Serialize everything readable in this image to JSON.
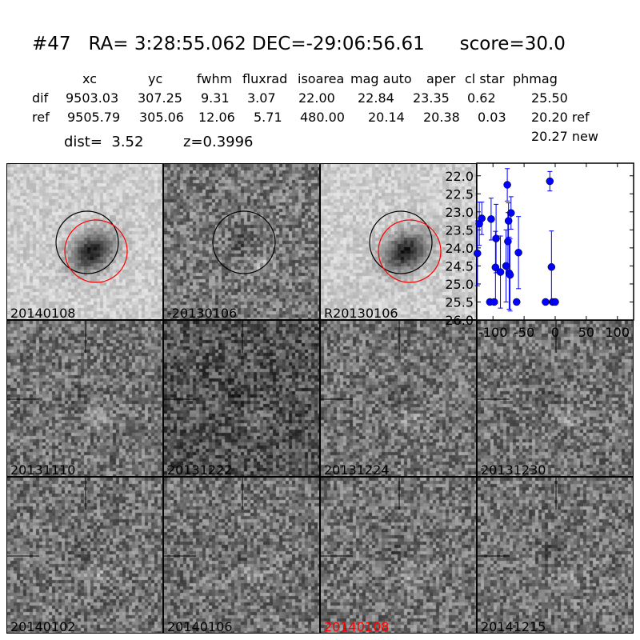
{
  "title": "#47   RA= 3:28:55.062 DEC=-29:06:56.61      score=30.0",
  "table": {
    "columns": [
      "xc",
      "yc",
      "fwhm",
      "fluxrad",
      "isoarea",
      "mag auto",
      "aper",
      "cl star",
      "phmag"
    ],
    "dif": {
      "label": "dif",
      "values": [
        "9503.03",
        "307.25",
        "9.31",
        "3.07",
        "22.00",
        "22.84",
        "23.35",
        "0.62",
        "25.50"
      ]
    },
    "ref": {
      "label": "ref",
      "values": [
        "9505.79",
        "305.06",
        "12.06",
        "5.71",
        "480.00",
        "20.14",
        "20.38",
        "0.03",
        "20.20 ref"
      ]
    },
    "new_phmag": "20.27 new",
    "dist": "dist=  3.52",
    "z": "z=0.3996"
  },
  "panels": [
    {
      "label": "20140108",
      "kind": "new",
      "circles": [
        "black",
        "red"
      ]
    },
    {
      "label": "-20130106",
      "kind": "diff",
      "circles": [
        "black"
      ]
    },
    {
      "label": "R20130106",
      "kind": "ref",
      "circles": [
        "black",
        "red"
      ]
    },
    {
      "label": "20131110",
      "kind": "stamp"
    },
    {
      "label": "20131222",
      "kind": "stamp"
    },
    {
      "label": "20131224",
      "kind": "stamp"
    },
    {
      "label": "20131230",
      "kind": "stamp"
    },
    {
      "label": "20140102",
      "kind": "stamp"
    },
    {
      "label": "20140106",
      "kind": "stamp"
    },
    {
      "label": "20140108",
      "kind": "stamp",
      "highlight": "#ff0000"
    },
    {
      "label": "20141215",
      "kind": "stamp"
    }
  ],
  "chart_data": {
    "type": "scatter",
    "title": "",
    "xlabel": "",
    "ylabel": "",
    "xlim": [
      -126,
      126
    ],
    "ylim": [
      26.0,
      21.65
    ],
    "y_inverted": true,
    "xticks": [
      "-100",
      "-50",
      "0",
      "50",
      "100"
    ],
    "yticks": [
      "22.0",
      "22.5",
      "23.0",
      "23.5",
      "24.0",
      "24.5",
      "25.0",
      "25.5",
      "26.0"
    ],
    "color": "#0000ff",
    "points": [
      {
        "x": -125,
        "y": 24.15,
        "err": 0.9
      },
      {
        "x": -122,
        "y": 23.33,
        "err": 0.6
      },
      {
        "x": -118,
        "y": 23.18,
        "err": 0.45
      },
      {
        "x": -103,
        "y": 23.2,
        "err": 0.58
      },
      {
        "x": -105,
        "y": 25.5,
        "err": 0.05
      },
      {
        "x": -98,
        "y": 25.5,
        "err": 0.05
      },
      {
        "x": -95,
        "y": 23.74,
        "err": 0.95
      },
      {
        "x": -96,
        "y": 24.54,
        "err": 1.0
      },
      {
        "x": -88,
        "y": 24.67,
        "err": 1.0
      },
      {
        "x": -77,
        "y": 22.25,
        "err": 0.45
      },
      {
        "x": -79,
        "y": 24.5,
        "err": 1.0
      },
      {
        "x": -76,
        "y": 23.82,
        "err": 0.8
      },
      {
        "x": -75,
        "y": 23.25,
        "err": 0.5
      },
      {
        "x": -74,
        "y": 24.7,
        "err": 1.0
      },
      {
        "x": -72.5,
        "y": 24.75,
        "err": 1.0
      },
      {
        "x": -71,
        "y": 23.03,
        "err": 0.45
      },
      {
        "x": -62,
        "y": 25.5,
        "err": 0.05
      },
      {
        "x": -59,
        "y": 24.13,
        "err": 1.0
      },
      {
        "x": -15.5,
        "y": 25.5,
        "err": 0.05
      },
      {
        "x": -8.6,
        "y": 22.15,
        "err": 0.27
      },
      {
        "x": -6,
        "y": 24.53,
        "err": 1.0
      },
      {
        "x": -4,
        "y": 25.5,
        "err": 0.05
      },
      {
        "x": 0,
        "y": 25.5,
        "err": 0.05
      }
    ]
  }
}
